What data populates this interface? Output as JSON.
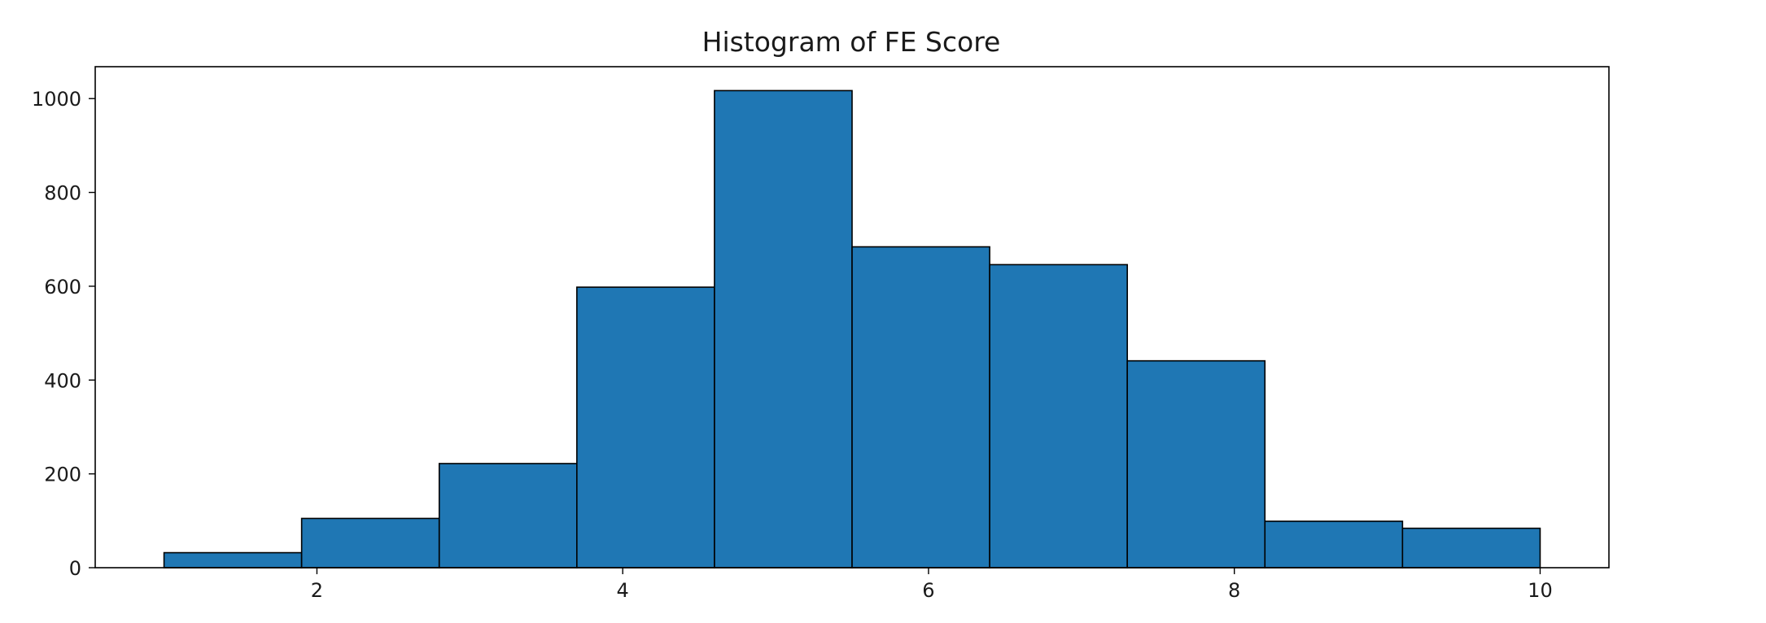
{
  "chart_data": {
    "type": "bar",
    "subtype": "histogram",
    "title": "Histogram of FE Score",
    "xlabel": "",
    "ylabel": "",
    "bin_edges": [
      1.0,
      1.9,
      2.8,
      3.7,
      4.6,
      5.5,
      6.4,
      7.3,
      8.2,
      9.1,
      10.0
    ],
    "values": [
      32,
      105,
      222,
      598,
      1017,
      684,
      646,
      441,
      99,
      84
    ],
    "xlim": [
      0.55,
      10.45
    ],
    "ylim": [
      0,
      1068
    ],
    "xticks": [
      2,
      4,
      6,
      8,
      10
    ],
    "yticks": [
      0,
      200,
      400,
      600,
      800,
      1000
    ],
    "bar_color": "#1f77b4",
    "edge_color": "#000000",
    "grid": false,
    "legend": "none"
  }
}
